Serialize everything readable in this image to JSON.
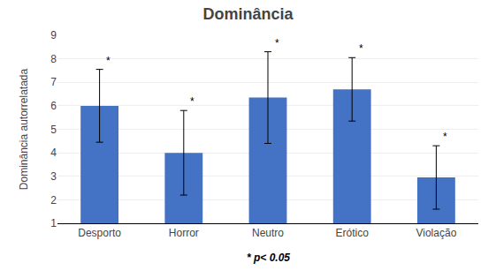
{
  "chart_data": {
    "type": "bar",
    "title": "Dominância",
    "ylabel": "Dominância autorrelatada",
    "note": "* p< 0.05",
    "categories": [
      "Desporto",
      "Horror",
      "Neutro",
      "Erótico",
      "Violação"
    ],
    "values": [
      6.0,
      4.0,
      6.35,
      6.7,
      2.95
    ],
    "errors": [
      1.55,
      1.8,
      1.95,
      1.35,
      1.35
    ],
    "bar_annotations": [
      "*",
      "*",
      "*",
      "*",
      "*"
    ],
    "color": "#4472C4",
    "ylim": [
      1,
      9
    ],
    "yticks": [
      1,
      2,
      3,
      4,
      5,
      6,
      7,
      8,
      9
    ],
    "grid": true
  }
}
